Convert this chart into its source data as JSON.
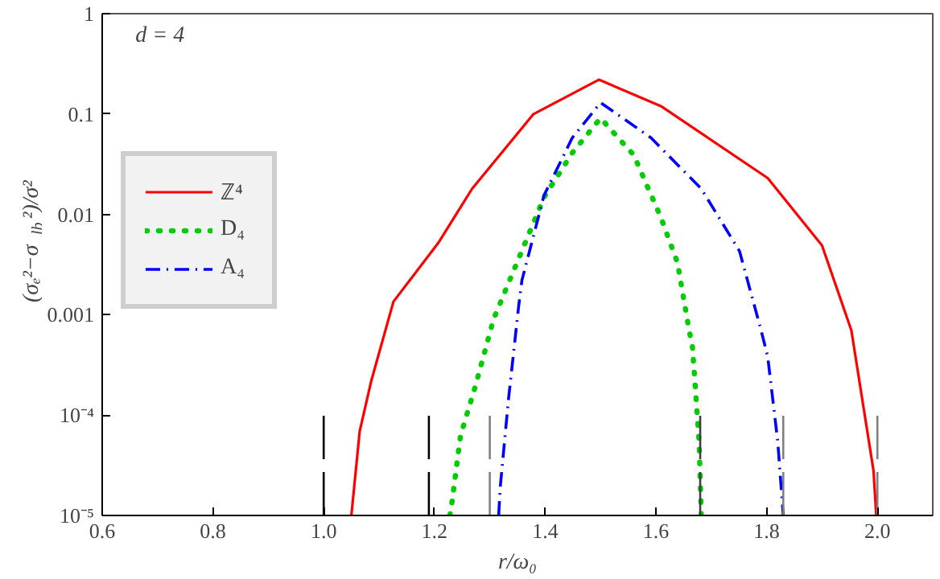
{
  "chart_data": {
    "type": "line",
    "xlabel": "r/ω₀",
    "ylabel": "(σₑ²−σ$_{lb}$²)/σ²",
    "annotations": [
      "d = 4"
    ],
    "log": "y",
    "grid": false,
    "legend": "top left",
    "xlim": [
      0.6,
      2.1
    ],
    "ylim": [
      1e-05,
      1
    ],
    "xticks": [
      0.6,
      0.8,
      {
        "value": 1.0,
        "label": "1.0"
      },
      1.2,
      1.4,
      1.6,
      1.8,
      {
        "value": 2.0,
        "label": "2.0"
      }
    ],
    "yticks": [
      {
        "value": 1e-05,
        "label": "10⁻⁵"
      },
      {
        "value": 0.0001,
        "label": "10⁻⁴"
      },
      0.001,
      0.01,
      0.1,
      1
    ],
    "series": [
      {
        "name": "ℤ⁴",
        "color": "#ff0000",
        "line_style": "solid",
        "x": [
          1.05,
          1.065,
          1.086,
          1.126,
          1.207,
          1.268,
          1.379,
          1.497,
          1.609,
          1.802,
          1.9,
          1.953,
          1.993,
          1.998
        ],
        "values": [
          1e-05,
          6.9e-05,
          0.00022,
          0.00135,
          0.0052,
          0.018,
          0.1,
          0.22,
          0.12,
          0.023,
          0.0049,
          0.0007,
          2.8e-05,
          1e-05
        ]
      },
      {
        "name": "D₄",
        "color": "#00cc00",
        "line_style": "dotted",
        "x": [
          1.228,
          1.232,
          1.247,
          1.274,
          1.307,
          1.349,
          1.398,
          1.449,
          1.5,
          1.56,
          1.609,
          1.639,
          1.66,
          1.666,
          1.678,
          1.682
        ],
        "values": [
          1e-05,
          1.4e-05,
          6.2e-05,
          0.000195,
          0.00091,
          0.0033,
          0.0148,
          0.041,
          0.091,
          0.039,
          0.0093,
          0.0033,
          0.0007,
          0.00048,
          5.5e-05,
          1e-05
        ]
      },
      {
        "name": "A₄",
        "color": "#0000ff",
        "line_style": "dashdot",
        "x": [
          1.316,
          1.319,
          1.334,
          1.352,
          1.358,
          1.398,
          1.449,
          1.5,
          1.591,
          1.682,
          1.751,
          1.79,
          1.802,
          1.82,
          1.83
        ],
        "values": [
          1e-05,
          1.95e-05,
          0.000148,
          0.0012,
          0.0022,
          0.0155,
          0.058,
          0.13,
          0.058,
          0.018,
          0.0043,
          0.0007,
          0.00038,
          5.5e-05,
          1e-05
        ]
      },
      {
        "color": "#000000",
        "line_style": "dashed",
        "x": [
          1.0,
          1.0
        ],
        "values": [
          1e-05,
          0.0001
        ]
      },
      {
        "color": "#000000",
        "line_style": "dashed",
        "x": [
          1.19,
          1.19
        ],
        "values": [
          1e-05,
          0.0001
        ]
      },
      {
        "color": "#808080",
        "line_style": "dashed",
        "x": [
          1.3,
          1.3
        ],
        "values": [
          1e-05,
          0.0001
        ]
      },
      {
        "color": "#404040",
        "line_style": "dashed",
        "x": [
          1.68,
          1.68
        ],
        "values": [
          1e-05,
          0.0001
        ]
      },
      {
        "color": "#808080",
        "line_style": "dashed",
        "x": [
          1.83,
          1.83
        ],
        "values": [
          1e-05,
          0.0001
        ]
      },
      {
        "color": "#808080",
        "line_style": "dashed",
        "x": [
          2.0,
          2.0
        ],
        "values": [
          1e-05,
          0.0001
        ]
      }
    ]
  }
}
